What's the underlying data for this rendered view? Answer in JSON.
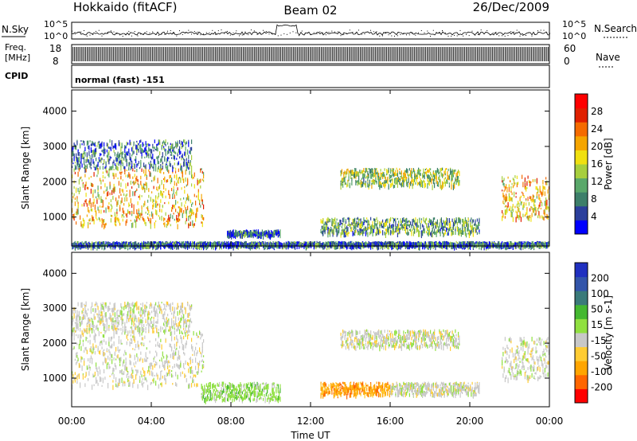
{
  "header": {
    "radar": "Hokkaido (fitACF)",
    "beam": "Beam 02",
    "date": "26/Dec/2009"
  },
  "strip": {
    "nsky_label": "N.Sky",
    "nsky_ticks": [
      "10^5",
      "10^0"
    ],
    "nsearch_label": "N.Search",
    "freq_label": [
      "Freq.",
      "[MHz]"
    ],
    "freq_ticks": [
      "18",
      "8"
    ],
    "nave_label": "Nave",
    "nave_ticks": [
      "60",
      "0"
    ],
    "cpid_label": "CPID",
    "cpid_value": "normal (fast) -151"
  },
  "colors": {
    "power_scale": [
      "#0000ff",
      "#2b3f9c",
      "#3d7f6a",
      "#5aa86a",
      "#a7cf3d",
      "#f0e010",
      "#f5a500",
      "#f56b00",
      "#e02000",
      "#ff0000"
    ],
    "velocity_scale": [
      "#ff0000",
      "#ff6600",
      "#ffa500",
      "#ffcc33",
      "#c8c8c8",
      "#90e040",
      "#44b830",
      "#3a7a7a",
      "#3355aa",
      "#2030c0"
    ]
  },
  "chart_data": [
    {
      "type": "heatmap",
      "title": "Power",
      "ylabel": "Slant Range [km]",
      "ylim": [
        180,
        4600
      ],
      "yticks": [
        "1000",
        "2000",
        "3000",
        "4000"
      ],
      "colorbar_label": "Power [dB]",
      "colorbar_ticks": [
        "4",
        "8",
        "12",
        "16",
        "20",
        "24",
        "28"
      ],
      "colorbar_range": [
        0,
        32
      ],
      "regions": [
        {
          "t": [
            0.0,
            6.6
          ],
          "r": [
            800,
            2400
          ],
          "value": 20
        },
        {
          "t": [
            0.0,
            6.0
          ],
          "r": [
            2400,
            3200
          ],
          "value": 6
        },
        {
          "t": [
            7.8,
            10.5
          ],
          "r": [
            500,
            650
          ],
          "value": 6
        },
        {
          "t": [
            12.5,
            20.5
          ],
          "r": [
            550,
            1000
          ],
          "value": 10
        },
        {
          "t": [
            13.5,
            19.5
          ],
          "r": [
            1900,
            2400
          ],
          "value": 14
        },
        {
          "t": [
            21.6,
            24.0
          ],
          "r": [
            1000,
            2200
          ],
          "value": 20
        },
        {
          "t": [
            0.0,
            24.0
          ],
          "r": [
            200,
            320
          ],
          "value": 6
        }
      ]
    },
    {
      "type": "heatmap",
      "title": "Velocity",
      "ylabel": "Slant Range [km]",
      "xlabel": "Time UT",
      "xlim": [
        0,
        24
      ],
      "xticks": [
        "00:00",
        "04:00",
        "08:00",
        "12:00",
        "16:00",
        "20:00",
        "00:00"
      ],
      "ylim": [
        180,
        4600
      ],
      "yticks": [
        "1000",
        "2000",
        "3000",
        "4000"
      ],
      "colorbar_label": "Velocity [m s-1]",
      "colorbar_ticks": [
        "200",
        "100",
        "50",
        "15",
        "-15",
        "-50",
        "-100",
        "-200"
      ],
      "colorbar_range": [
        -250,
        250
      ],
      "regions": [
        {
          "t": [
            0.0,
            6.6
          ],
          "r": [
            800,
            2400
          ],
          "value": 0
        },
        {
          "t": [
            0.0,
            6.0
          ],
          "r": [
            2400,
            3200
          ],
          "value": 0
        },
        {
          "t": [
            6.5,
            10.5
          ],
          "r": [
            400,
            900
          ],
          "value": 40
        },
        {
          "t": [
            12.5,
            16.0
          ],
          "r": [
            550,
            900
          ],
          "value": -40
        },
        {
          "t": [
            16.0,
            20.5
          ],
          "r": [
            550,
            900
          ],
          "value": 30
        },
        {
          "t": [
            13.5,
            19.5
          ],
          "r": [
            1900,
            2400
          ],
          "value": 0
        },
        {
          "t": [
            21.6,
            24.0
          ],
          "r": [
            1000,
            2200
          ],
          "value": 0
        }
      ]
    }
  ]
}
